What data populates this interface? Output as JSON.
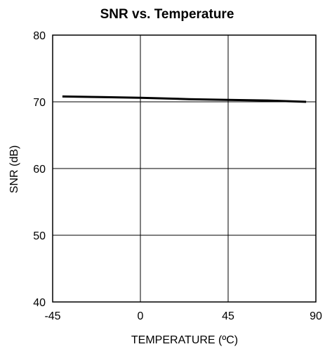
{
  "chart_data": {
    "type": "line",
    "title": "SNR vs. Temperature",
    "xlabel": "TEMPERATURE (ºC)",
    "ylabel": "SNR (dB)",
    "xlim": [
      -45,
      90
    ],
    "ylim": [
      40,
      80
    ],
    "x_ticks": [
      -45,
      0,
      45,
      90
    ],
    "y_ticks": [
      40,
      50,
      60,
      70,
      80
    ],
    "grid": true,
    "line_color": "#000000",
    "series": [
      {
        "x": [
          -40,
          -20,
          0,
          25,
          45,
          65,
          85
        ],
        "y": [
          70.8,
          70.7,
          70.6,
          70.4,
          70.3,
          70.2,
          70.0
        ]
      }
    ]
  }
}
